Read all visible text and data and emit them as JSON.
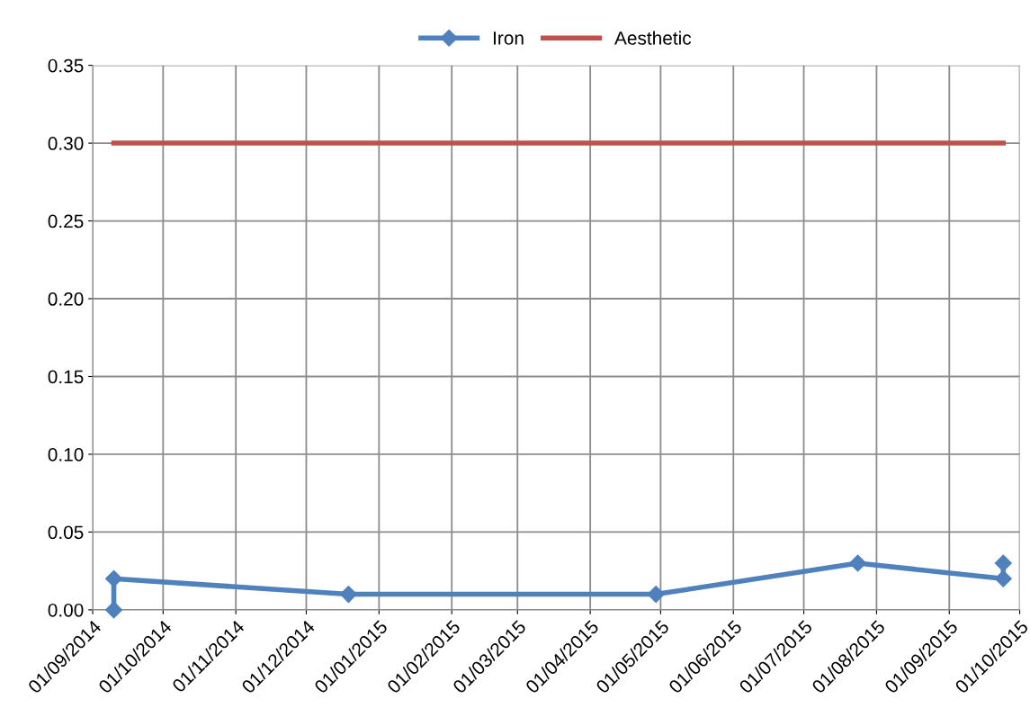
{
  "chart_data": {
    "type": "line",
    "series": [
      {
        "name": "Iron",
        "color": "#4f81bd",
        "marker": "diamond",
        "x": [
          "2014-09-10",
          "2014-09-10",
          "2014-12-19",
          "2015-04-29",
          "2015-07-24",
          "2015-09-24",
          "2015-09-24"
        ],
        "values": [
          0.0,
          0.02,
          0.01,
          0.01,
          0.03,
          0.02,
          0.03
        ]
      },
      {
        "name": "Aesthetic",
        "color": "#c0504d",
        "marker": "none",
        "x": [
          "2014-09-10",
          "2015-09-24"
        ],
        "values": [
          0.3,
          0.3
        ]
      }
    ],
    "xlim": [
      "2014-09-01",
      "2015-10-01"
    ],
    "xticks": [
      {
        "value": "2014-09-01",
        "label": "01/09/2014"
      },
      {
        "value": "2014-10-01",
        "label": "01/10/2014"
      },
      {
        "value": "2014-11-01",
        "label": "01/11/2014"
      },
      {
        "value": "2014-12-01",
        "label": "01/12/2014"
      },
      {
        "value": "2015-01-01",
        "label": "01/01/2015"
      },
      {
        "value": "2015-02-01",
        "label": "01/02/2015"
      },
      {
        "value": "2015-03-01",
        "label": "01/03/2015"
      },
      {
        "value": "2015-04-01",
        "label": "01/04/2015"
      },
      {
        "value": "2015-05-01",
        "label": "01/05/2015"
      },
      {
        "value": "2015-06-01",
        "label": "01/06/2015"
      },
      {
        "value": "2015-07-01",
        "label": "01/07/2015"
      },
      {
        "value": "2015-08-01",
        "label": "01/08/2015"
      },
      {
        "value": "2015-09-01",
        "label": "01/09/2015"
      },
      {
        "value": "2015-10-01",
        "label": "01/10/2015"
      }
    ],
    "ylim": [
      0,
      0.35
    ],
    "yticks": [
      {
        "value": 0,
        "label": "0.00"
      },
      {
        "value": 0.05,
        "label": "0.05"
      },
      {
        "value": 0.1,
        "label": "0.10"
      },
      {
        "value": 0.15,
        "label": "0.15"
      },
      {
        "value": 0.2,
        "label": "0.20"
      },
      {
        "value": 0.25,
        "label": "0.25"
      },
      {
        "value": 0.3,
        "label": "0.30"
      },
      {
        "value": 0.35,
        "label": "0.35"
      }
    ],
    "grid": true,
    "legend": "top",
    "line_style": "solid"
  }
}
